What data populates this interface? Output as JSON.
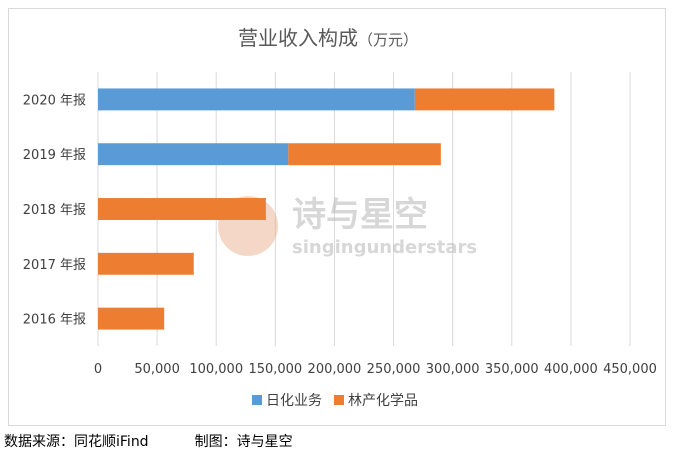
{
  "chart_data": {
    "type": "bar",
    "orientation": "horizontal",
    "stacked": true,
    "title": "营业收入构成",
    "title_unit": "（万元）",
    "categories": [
      "2020 年报",
      "2019 年报",
      "2018 年报",
      "2017 年报",
      "2016 年报"
    ],
    "series": [
      {
        "name": "日化业务",
        "color": "#5b9bd5",
        "values": [
          268000,
          161000,
          0,
          0,
          0
        ]
      },
      {
        "name": "林产化学品",
        "color": "#ed7d31",
        "values": [
          118000,
          129000,
          142000,
          81000,
          56000
        ]
      }
    ],
    "xlim": [
      0,
      450000
    ],
    "xticks": [
      0,
      50000,
      100000,
      150000,
      200000,
      250000,
      300000,
      350000,
      400000,
      450000
    ],
    "xtick_labels": [
      "0",
      "50,000",
      "100,000",
      "150,000",
      "200,000",
      "250,000",
      "300,000",
      "350,000",
      "400,000",
      "450,000"
    ],
    "grid": true,
    "legend_position": "bottom"
  },
  "watermark": {
    "main": "诗与星空",
    "sub": "singingunderstars"
  },
  "footer": {
    "source": "数据来源：同花顺iFind",
    "credit": "制图：诗与星空"
  }
}
